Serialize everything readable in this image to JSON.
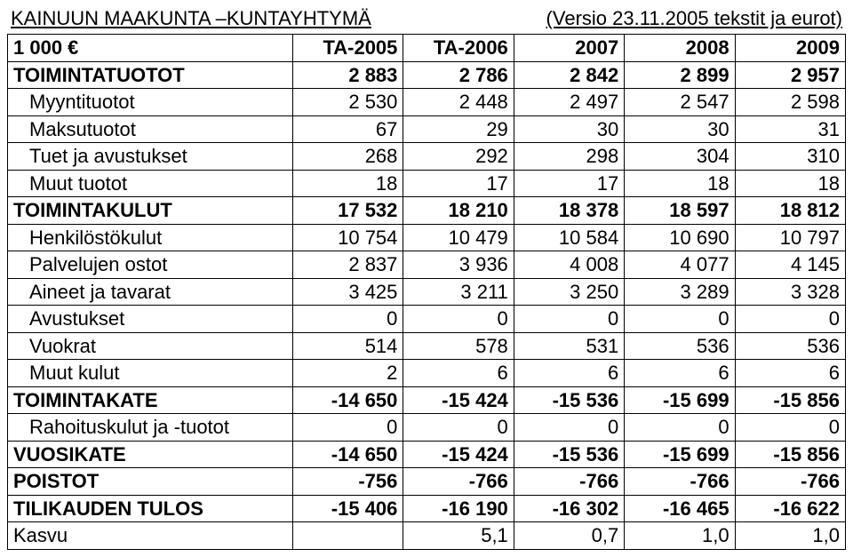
{
  "header": {
    "left": "KAINUUN MAAKUNTA –KUNTAYHTYMÄ",
    "right": "(Versio 23.11.2005 tekstit ja  eurot)"
  },
  "columns": [
    "1 000 €",
    "TA-2005",
    "TA-2006",
    "2007",
    "2008",
    "2009"
  ],
  "rows": [
    {
      "label": "TOIMINTATUOTOT",
      "values": [
        "2 883",
        "2 786",
        "2 842",
        "2 899",
        "2 957"
      ],
      "bold": true,
      "indent": false
    },
    {
      "label": "Myyntituotot",
      "values": [
        "2 530",
        "2 448",
        "2 497",
        "2 547",
        "2 598"
      ],
      "bold": false,
      "indent": true
    },
    {
      "label": "Maksutuotot",
      "values": [
        "67",
        "29",
        "30",
        "30",
        "31"
      ],
      "bold": false,
      "indent": true
    },
    {
      "label": "Tuet ja avustukset",
      "values": [
        "268",
        "292",
        "298",
        "304",
        "310"
      ],
      "bold": false,
      "indent": true
    },
    {
      "label": "Muut tuotot",
      "values": [
        "18",
        "17",
        "17",
        "18",
        "18"
      ],
      "bold": false,
      "indent": true
    },
    {
      "label": "TOIMINTAKULUT",
      "values": [
        "17 532",
        "18 210",
        "18 378",
        "18 597",
        "18 812"
      ],
      "bold": true,
      "indent": false
    },
    {
      "label": "Henkilöstökulut",
      "values": [
        "10 754",
        "10 479",
        "10 584",
        "10 690",
        "10 797"
      ],
      "bold": false,
      "indent": true
    },
    {
      "label": "Palvelujen ostot",
      "values": [
        "2 837",
        "3 936",
        "4 008",
        "4 077",
        "4 145"
      ],
      "bold": false,
      "indent": true
    },
    {
      "label": "Aineet ja tavarat",
      "values": [
        "3 425",
        "3 211",
        "3 250",
        "3 289",
        "3 328"
      ],
      "bold": false,
      "indent": true
    },
    {
      "label": "Avustukset",
      "values": [
        "0",
        "0",
        "0",
        "0",
        "0"
      ],
      "bold": false,
      "indent": true
    },
    {
      "label": "Vuokrat",
      "values": [
        "514",
        "578",
        "531",
        "536",
        "536"
      ],
      "bold": false,
      "indent": true
    },
    {
      "label": "Muut kulut",
      "values": [
        "2",
        "6",
        "6",
        "6",
        "6"
      ],
      "bold": false,
      "indent": true
    },
    {
      "label": "TOIMINTAKATE",
      "values": [
        "-14 650",
        "-15 424",
        "-15 536",
        "-15 699",
        "-15 856"
      ],
      "bold": true,
      "indent": false
    },
    {
      "label": "Rahoituskulut ja -tuotot",
      "values": [
        "0",
        "0",
        "0",
        "0",
        "0"
      ],
      "bold": false,
      "indent": true
    },
    {
      "label": "VUOSIKATE",
      "values": [
        "-14 650",
        "-15 424",
        "-15 536",
        "-15 699",
        "-15 856"
      ],
      "bold": true,
      "indent": false
    },
    {
      "label": "POISTOT",
      "values": [
        "-756",
        "-766",
        "-766",
        "-766",
        "-766"
      ],
      "bold": true,
      "indent": false
    },
    {
      "label": "TILIKAUDEN TULOS",
      "values": [
        "-15 406",
        "-16 190",
        "-16 302",
        "-16 465",
        "-16 622"
      ],
      "bold": true,
      "indent": false
    },
    {
      "label": "Kasvu",
      "values": [
        "",
        "5,1",
        "0,7",
        "1,0",
        "1,0"
      ],
      "bold": false,
      "indent": false
    }
  ]
}
